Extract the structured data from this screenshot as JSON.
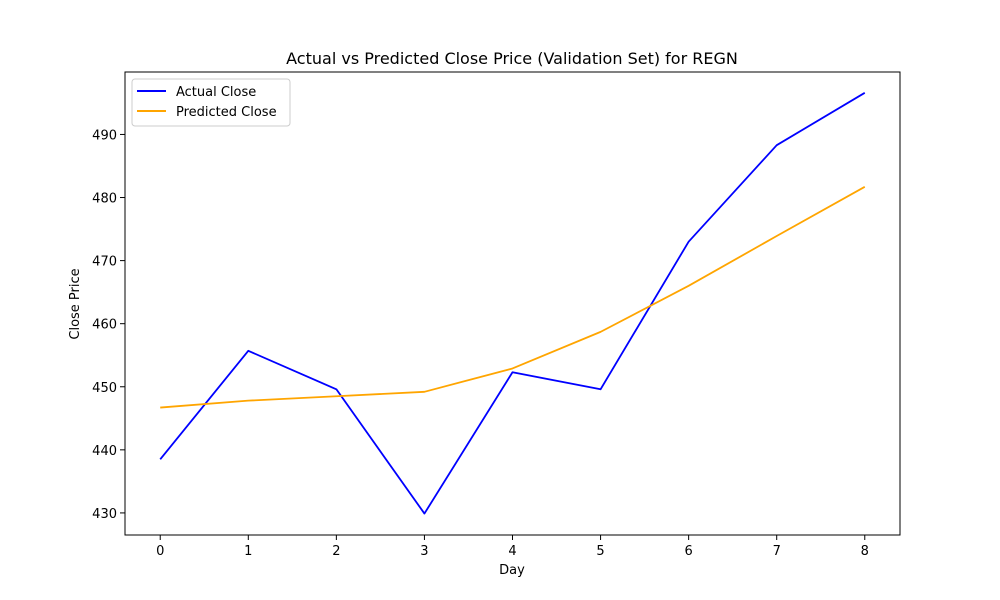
{
  "chart_data": {
    "type": "line",
    "title": "Actual vs Predicted Close Price (Validation Set) for REGN",
    "xlabel": "Day",
    "ylabel": "Close Price",
    "x": [
      0,
      1,
      2,
      3,
      4,
      5,
      6,
      7,
      8
    ],
    "xlim": [
      -0.4,
      8.4
    ],
    "ylim": [
      426.5,
      499.9
    ],
    "xticks": [
      0,
      1,
      2,
      3,
      4,
      5,
      6,
      7,
      8
    ],
    "xtick_labels": [
      "0",
      "1",
      "2",
      "3",
      "4",
      "5",
      "6",
      "7",
      "8"
    ],
    "yticks": [
      430,
      440,
      450,
      460,
      470,
      480,
      490
    ],
    "ytick_labels": [
      "430",
      "440",
      "450",
      "460",
      "470",
      "480",
      "490"
    ],
    "grid": false,
    "legend_position": "top-left",
    "series": [
      {
        "name": "Actual Close",
        "color": "#0000ff",
        "values": [
          438.5,
          455.7,
          449.6,
          429.9,
          452.3,
          449.6,
          473.0,
          488.3,
          496.6
        ]
      },
      {
        "name": "Predicted Close",
        "color": "#ffa500",
        "values": [
          446.7,
          447.8,
          448.5,
          449.2,
          452.9,
          458.7,
          466.0,
          473.9,
          481.7
        ]
      }
    ]
  }
}
